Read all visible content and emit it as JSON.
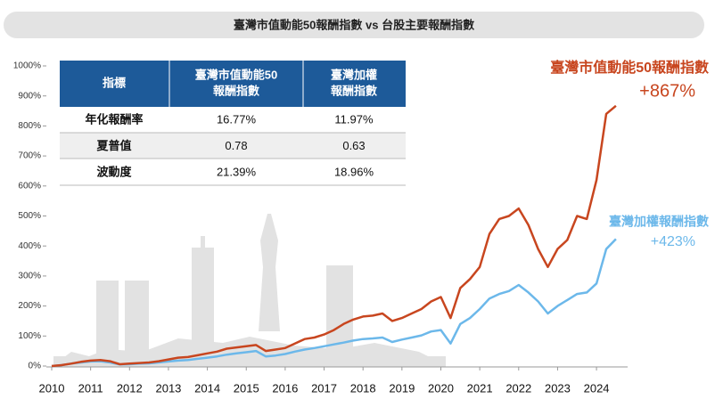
{
  "chart_data": {
    "type": "line",
    "title": "臺灣市值動能50報酬指數 vs 台股主要報酬指數",
    "x": [
      2010,
      2010.25,
      2010.5,
      2010.75,
      2011,
      2011.25,
      2011.5,
      2011.75,
      2012,
      2012.25,
      2012.5,
      2012.75,
      2013,
      2013.25,
      2013.5,
      2013.75,
      2014,
      2014.25,
      2014.5,
      2014.75,
      2015,
      2015.25,
      2015.5,
      2015.75,
      2016,
      2016.25,
      2016.5,
      2016.75,
      2017,
      2017.25,
      2017.5,
      2017.75,
      2018,
      2018.25,
      2018.5,
      2018.75,
      2019,
      2019.25,
      2019.5,
      2019.75,
      2020,
      2020.25,
      2020.5,
      2020.75,
      2021,
      2021.25,
      2021.5,
      2021.75,
      2022,
      2022.25,
      2022.5,
      2022.75,
      2023,
      2023.25,
      2023.5,
      2023.75,
      2024,
      2024.25,
      2024.5
    ],
    "series": [
      {
        "name": "臺灣市值動能50報酬指數",
        "color": "#c8461f",
        "values": [
          0,
          3,
          8,
          14,
          18,
          20,
          16,
          6,
          8,
          10,
          12,
          16,
          22,
          28,
          30,
          36,
          42,
          48,
          58,
          62,
          66,
          70,
          50,
          55,
          60,
          75,
          90,
          95,
          105,
          120,
          140,
          155,
          165,
          168,
          175,
          150,
          160,
          175,
          190,
          215,
          230,
          160,
          260,
          290,
          330,
          440,
          490,
          500,
          525,
          470,
          390,
          330,
          390,
          420,
          500,
          490,
          620,
          840,
          867
        ]
      },
      {
        "name": "臺灣加權報酬指數",
        "color": "#6cb8ea",
        "values": [
          0,
          3,
          8,
          12,
          15,
          16,
          12,
          5,
          6,
          8,
          9,
          12,
          15,
          18,
          20,
          24,
          28,
          32,
          38,
          42,
          46,
          50,
          32,
          35,
          40,
          48,
          55,
          60,
          66,
          72,
          78,
          85,
          90,
          92,
          95,
          80,
          88,
          95,
          102,
          115,
          120,
          75,
          140,
          160,
          190,
          225,
          240,
          250,
          270,
          245,
          215,
          175,
          200,
          220,
          240,
          245,
          275,
          390,
          423
        ]
      }
    ],
    "annotations": [
      "+867%",
      "+423%"
    ],
    "xlim": [
      2010,
      2024.8
    ],
    "xticks": [
      2010,
      2011,
      2012,
      2013,
      2014,
      2015,
      2016,
      2017,
      2018,
      2019,
      2020,
      2021,
      2022,
      2023,
      2024
    ],
    "ylim": [
      0,
      1000
    ],
    "yticks": [
      {
        "value": 0,
        "label": "0%"
      },
      {
        "value": 100,
        "label": "100%"
      },
      {
        "value": 200,
        "label": "200%"
      },
      {
        "value": 300,
        "label": "300%"
      },
      {
        "value": 400,
        "label": "400%"
      },
      {
        "value": 500,
        "label": "500%"
      },
      {
        "value": 600,
        "label": "600%"
      },
      {
        "value": 700,
        "label": "700%"
      },
      {
        "value": 800,
        "label": "800%"
      },
      {
        "value": 900,
        "label": "900%"
      },
      {
        "value": 1000,
        "label": "1000%"
      }
    ],
    "table": {
      "header": [
        [
          "指標"
        ],
        [
          "臺灣市值動能50",
          "報酬指數"
        ],
        [
          "臺灣加權",
          "報酬指數"
        ]
      ],
      "rows": [
        [
          "年化報酬率",
          "16.77%",
          "11.97%"
        ],
        [
          "夏普值",
          "0.78",
          "0.63"
        ],
        [
          "波動度",
          "21.39%",
          "18.96%"
        ]
      ]
    }
  }
}
